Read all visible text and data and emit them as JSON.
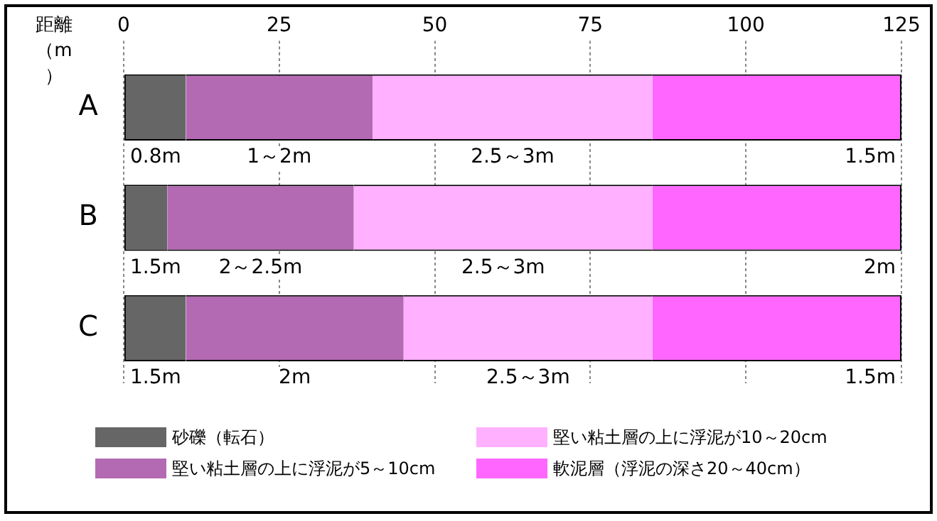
{
  "chart_data": {
    "type": "bar",
    "orientation": "horizontal",
    "stacked": true,
    "xlabel": "距離（m）",
    "categories": [
      "A",
      "B",
      "C"
    ],
    "series": [
      {
        "name": "砂礫（転石）",
        "color": "#666666",
        "values": [
          10,
          7,
          10
        ]
      },
      {
        "name": "堅い粘土層の上に浮泥が5～10cm",
        "color": "#b36ab2",
        "values": [
          30,
          30,
          35
        ]
      },
      {
        "name": "堅い粘土層の上に浮泥が10～20cm",
        "color": "#ffb0ff",
        "values": [
          45,
          48,
          40
        ]
      },
      {
        "name": "軟泥層（浮泥の深さ20～40cm）",
        "color": "#ff66ff",
        "values": [
          40,
          40,
          40
        ]
      }
    ],
    "xlim": [
      0,
      125
    ],
    "xticks": [
      0,
      25,
      50,
      75,
      100,
      125
    ],
    "grid": "x",
    "legend": "bottom",
    "annotations": [
      "0.8m",
      "1～2m",
      "2.5～3m",
      "1.5m",
      "1.5m",
      "2～2.5m",
      "2.5～3m",
      "2m",
      "1.5m",
      "2m",
      "2.5～3m",
      "1.5m"
    ]
  }
}
